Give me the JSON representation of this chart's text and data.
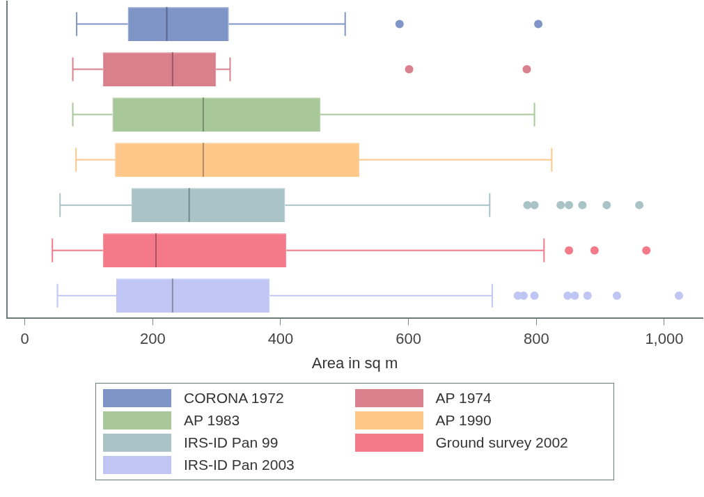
{
  "chart_data": {
    "type": "box",
    "orientation": "horizontal",
    "xlabel": "Area in sq m",
    "categories": [
      null,
      null,
      null,
      null,
      null,
      null,
      null
    ],
    "xlim": [
      -28,
      1060
    ],
    "xticks": [
      0,
      200,
      400,
      600,
      800,
      {
        "value": 1000,
        "label": "1,000"
      }
    ],
    "tick_labels": "x",
    "grid": false,
    "legend": "bottom",
    "series": [
      {
        "name": "CORONA 1972",
        "color": "#7f95c8",
        "boxes": [
          {
            "low": 81,
            "q1": 161,
            "median": 222,
            "q3": 319,
            "high": 501,
            "outliers": [
              586,
              803
            ]
          },
          null,
          null,
          null,
          null,
          null,
          null
        ]
      },
      {
        "name": "AP 1974",
        "color": "#d9808c",
        "boxes": [
          null,
          {
            "low": 75,
            "q1": 122,
            "median": 231,
            "q3": 299,
            "high": 321,
            "outliers": [
              601,
              785
            ]
          },
          null,
          null,
          null,
          null,
          null
        ]
      },
      {
        "name": "AP 1983",
        "color": "#a8c89a",
        "boxes": [
          null,
          null,
          {
            "low": 75,
            "q1": 137,
            "median": 279,
            "q3": 462,
            "high": 797
          },
          null,
          null,
          null,
          null
        ]
      },
      {
        "name": "AP 1990",
        "color": "#fdc78a",
        "boxes": [
          null,
          null,
          null,
          {
            "low": 80,
            "q1": 141,
            "median": 279,
            "q3": 523,
            "high": 824
          },
          null,
          null,
          null
        ]
      },
      {
        "name": "IRS-ID Pan 99",
        "color": "#a9c3c6",
        "boxes": [
          null,
          null,
          null,
          null,
          {
            "low": 55,
            "q1": 167,
            "median": 257,
            "q3": 407,
            "high": 727,
            "outliers": [
              786,
              797,
              838,
              851,
              872,
              910,
              961
            ]
          },
          null,
          null
        ]
      },
      {
        "name": "Ground survey 2002",
        "color": "#f47a8a",
        "boxes": [
          null,
          null,
          null,
          null,
          null,
          {
            "low": 43,
            "q1": 122,
            "median": 205,
            "q3": 409,
            "high": 812,
            "outliers": [
              851,
              891,
              972
            ]
          },
          null
        ]
      },
      {
        "name": "IRS-ID Pan 2003",
        "color": "#c0c6f4",
        "boxes": [
          null,
          null,
          null,
          null,
          null,
          null,
          {
            "low": 51,
            "q1": 143,
            "median": 231,
            "q3": 383,
            "high": 731,
            "outliers": [
              771,
              780,
              797,
              849,
              860,
              880,
              926,
              1023
            ]
          }
        ]
      }
    ]
  }
}
